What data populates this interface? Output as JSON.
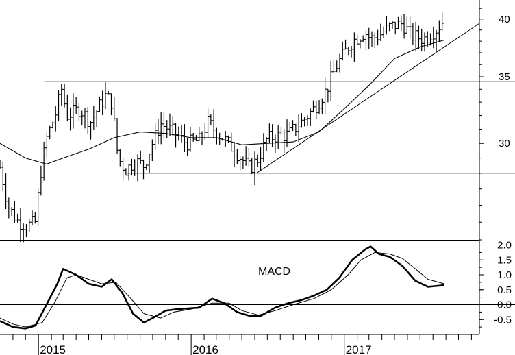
{
  "chart_data": [
    {
      "type": "bar",
      "subtype": "ohlc",
      "x_type": "date",
      "xlim": [
        "2014-10-01",
        "2017-11-20"
      ],
      "ylim": [
        24.0,
        41.8
      ],
      "y_scale": "log",
      "yticks": [
        30,
        35,
        40
      ],
      "xticks": [
        {
          "date": "2015-01-01",
          "label": "2015"
        },
        {
          "date": "2016-01-01",
          "label": "2016"
        },
        {
          "date": "2017-01-01",
          "label": "2017"
        }
      ],
      "month_ticks": true,
      "price_anchors": [
        [
          "2014-10-01",
          28.4
        ],
        [
          "2014-10-20",
          26.0
        ],
        [
          "2014-11-10",
          25.1
        ],
        [
          "2014-12-05",
          24.8
        ],
        [
          "2014-12-25",
          25.0
        ],
        [
          "2015-01-05",
          27.8
        ],
        [
          "2015-01-20",
          30.3
        ],
        [
          "2015-02-10",
          32.0
        ],
        [
          "2015-02-25",
          34.0
        ],
        [
          "2015-03-10",
          32.0
        ],
        [
          "2015-04-10",
          32.5
        ],
        [
          "2015-05-05",
          31.5
        ],
        [
          "2015-06-10",
          33.5
        ],
        [
          "2015-06-25",
          33.0
        ],
        [
          "2015-07-10",
          29.0
        ],
        [
          "2015-07-28",
          28.2
        ],
        [
          "2015-08-20",
          28.8
        ],
        [
          "2015-09-10",
          28.5
        ],
        [
          "2015-09-30",
          30.0
        ],
        [
          "2015-10-20",
          31.4
        ],
        [
          "2015-11-20",
          30.8
        ],
        [
          "2015-12-20",
          30.0
        ],
        [
          "2016-01-20",
          30.2
        ],
        [
          "2016-02-10",
          31.5
        ],
        [
          "2016-02-25",
          31.0
        ],
        [
          "2016-03-20",
          30.3
        ],
        [
          "2016-04-20",
          29.3
        ],
        [
          "2016-05-20",
          28.3
        ],
        [
          "2016-06-10",
          29.0
        ],
        [
          "2016-06-30",
          30.3
        ],
        [
          "2016-07-20",
          30.5
        ],
        [
          "2016-08-20",
          30.6
        ],
        [
          "2016-09-20",
          31.5
        ],
        [
          "2016-10-20",
          32.5
        ],
        [
          "2016-11-20",
          34.0
        ],
        [
          "2016-12-15",
          36.0
        ],
        [
          "2017-01-20",
          38.0
        ],
        [
          "2017-02-20",
          38.8
        ],
        [
          "2017-03-05",
          38.2
        ],
        [
          "2017-03-25",
          38.5
        ],
        [
          "2017-04-20",
          39.3
        ],
        [
          "2017-05-20",
          39.6
        ],
        [
          "2017-06-10",
          38.5
        ],
        [
          "2017-07-10",
          38.2
        ],
        [
          "2017-08-10",
          39.1
        ],
        [
          "2017-08-28",
          40.0
        ]
      ],
      "moving_average": [
        [
          "2014-10-01",
          30.0
        ],
        [
          "2014-12-01",
          29.0
        ],
        [
          "2015-01-20",
          28.6
        ],
        [
          "2015-03-01",
          29.0
        ],
        [
          "2015-05-01",
          29.6
        ],
        [
          "2015-07-01",
          30.4
        ],
        [
          "2015-09-01",
          30.8
        ],
        [
          "2015-11-01",
          30.7
        ],
        [
          "2016-01-01",
          30.4
        ],
        [
          "2016-03-01",
          30.4
        ],
        [
          "2016-05-01",
          29.9
        ],
        [
          "2016-07-01",
          30.0
        ],
        [
          "2016-09-01",
          30.1
        ],
        [
          "2016-11-01",
          30.8
        ],
        [
          "2017-01-01",
          32.5
        ],
        [
          "2017-03-01",
          34.3
        ],
        [
          "2017-05-01",
          36.5
        ],
        [
          "2017-07-01",
          37.5
        ],
        [
          "2017-08-28",
          38.1
        ]
      ],
      "lines": [
        {
          "kind": "horizontal",
          "value": 34.6,
          "from": "2015-01-15"
        },
        {
          "kind": "horizontal",
          "value": 28.0,
          "from": "2015-07-28"
        },
        {
          "kind": "trendline",
          "points": [
            [
              "2016-06-05",
              28.0
            ],
            [
              "2017-11-20",
              39.6
            ]
          ]
        }
      ]
    },
    {
      "type": "line",
      "title": "MACD",
      "x_type": "date",
      "xlim": [
        "2014-10-01",
        "2017-11-20"
      ],
      "ylim": [
        -1.0,
        2.15
      ],
      "yticks": [
        -0.5,
        0.0,
        0.5,
        1.0,
        1.5,
        2.0
      ],
      "ytick_labels": [
        "-0.5",
        "0.0",
        "0.5",
        "1.0",
        "1.5",
        "2.0"
      ],
      "zero_line": true,
      "series": [
        {
          "style": "thick",
          "points": [
            [
              "2014-10-01",
              -0.55
            ],
            [
              "2014-11-01",
              -0.75
            ],
            [
              "2014-12-01",
              -0.8
            ],
            [
              "2014-12-25",
              -0.7
            ],
            [
              "2015-01-20",
              0.0
            ],
            [
              "2015-02-15",
              0.7
            ],
            [
              "2015-03-01",
              1.2
            ],
            [
              "2015-04-01",
              1.0
            ],
            [
              "2015-05-01",
              0.7
            ],
            [
              "2015-06-01",
              0.6
            ],
            [
              "2015-06-25",
              0.85
            ],
            [
              "2015-07-20",
              0.4
            ],
            [
              "2015-08-15",
              -0.3
            ],
            [
              "2015-09-10",
              -0.6
            ],
            [
              "2015-10-01",
              -0.45
            ],
            [
              "2015-11-01",
              -0.2
            ],
            [
              "2015-12-01",
              -0.15
            ],
            [
              "2016-01-20",
              -0.1
            ],
            [
              "2016-02-20",
              0.2
            ],
            [
              "2016-03-20",
              0.05
            ],
            [
              "2016-04-20",
              -0.25
            ],
            [
              "2016-05-20",
              -0.38
            ],
            [
              "2016-06-15",
              -0.38
            ],
            [
              "2016-07-20",
              -0.1
            ],
            [
              "2016-08-20",
              0.05
            ],
            [
              "2016-09-20",
              0.15
            ],
            [
              "2016-10-20",
              0.3
            ],
            [
              "2016-11-20",
              0.5
            ],
            [
              "2016-12-20",
              0.9
            ],
            [
              "2017-01-20",
              1.5
            ],
            [
              "2017-02-20",
              1.85
            ],
            [
              "2017-03-05",
              1.95
            ],
            [
              "2017-03-25",
              1.7
            ],
            [
              "2017-04-20",
              1.6
            ],
            [
              "2017-05-20",
              1.3
            ],
            [
              "2017-06-20",
              0.8
            ],
            [
              "2017-07-20",
              0.6
            ],
            [
              "2017-08-28",
              0.65
            ]
          ]
        },
        {
          "style": "thin",
          "points": [
            [
              "2014-10-01",
              -0.45
            ],
            [
              "2014-11-01",
              -0.65
            ],
            [
              "2014-12-01",
              -0.75
            ],
            [
              "2015-01-10",
              -0.6
            ],
            [
              "2015-02-10",
              0.1
            ],
            [
              "2015-03-10",
              0.9
            ],
            [
              "2015-04-01",
              1.0
            ],
            [
              "2015-05-01",
              0.85
            ],
            [
              "2015-06-01",
              0.7
            ],
            [
              "2015-07-05",
              0.75
            ],
            [
              "2015-08-10",
              0.2
            ],
            [
              "2015-09-10",
              -0.3
            ],
            [
              "2015-10-20",
              -0.45
            ],
            [
              "2015-11-20",
              -0.25
            ],
            [
              "2016-01-01",
              -0.15
            ],
            [
              "2016-02-20",
              0.05
            ],
            [
              "2016-04-01",
              0.05
            ],
            [
              "2016-05-01",
              -0.2
            ],
            [
              "2016-06-10",
              -0.35
            ],
            [
              "2016-07-20",
              -0.2
            ],
            [
              "2016-09-01",
              0.0
            ],
            [
              "2016-10-20",
              0.2
            ],
            [
              "2016-12-01",
              0.5
            ],
            [
              "2017-01-10",
              1.0
            ],
            [
              "2017-02-10",
              1.5
            ],
            [
              "2017-03-15",
              1.75
            ],
            [
              "2017-04-20",
              1.7
            ],
            [
              "2017-05-20",
              1.55
            ],
            [
              "2017-06-20",
              1.2
            ],
            [
              "2017-07-20",
              0.85
            ],
            [
              "2017-08-28",
              0.7
            ]
          ]
        }
      ]
    }
  ]
}
